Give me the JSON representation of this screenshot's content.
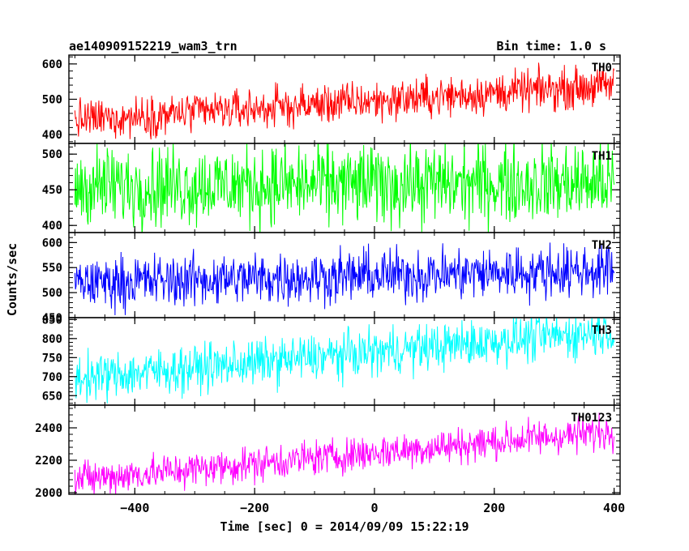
{
  "header": {
    "title": "ae140909152219_wam3_trn",
    "bin_time": "Bin time: 1.0 s"
  },
  "axes": {
    "ylabel": "Counts/sec",
    "xlabel": "Time [sec] 0 = 2014/09/09 15:22:19"
  },
  "chart_data": {
    "type": "line",
    "x_axis": {
      "range": [
        -510,
        410
      ],
      "ticks": [
        -400,
        -200,
        0,
        200,
        400
      ],
      "tick_labels": [
        "−400",
        "−200",
        "0",
        "200",
        "400"
      ]
    },
    "panels": [
      {
        "name": "TH0",
        "color": "#ff0000",
        "ylim": [
          375,
          625
        ],
        "yticks": [
          400,
          500,
          600
        ],
        "ytick_labels": [
          "400",
          "500",
          "600"
        ],
        "x_range": [
          -500,
          400
        ],
        "start": 440,
        "end": 540,
        "noise": 28
      },
      {
        "name": "TH1",
        "color": "#00ff00",
        "ylim": [
          390,
          515
        ],
        "yticks": [
          400,
          450,
          500
        ],
        "ytick_labels": [
          "400",
          "450",
          "500"
        ],
        "x_range": [
          -500,
          400
        ],
        "start": 455,
        "end": 460,
        "noise": 28
      },
      {
        "name": "TH2",
        "color": "#0000ff",
        "ylim": [
          450,
          620
        ],
        "yticks": [
          450,
          500,
          550,
          600
        ],
        "ytick_labels": [
          "450",
          "500",
          "550",
          "600"
        ],
        "x_range": [
          -500,
          400
        ],
        "start": 520,
        "end": 545,
        "noise": 26
      },
      {
        "name": "TH3",
        "color": "#00ffff",
        "ylim": [
          625,
          855
        ],
        "yticks": [
          650,
          700,
          750,
          800,
          850
        ],
        "ytick_labels": [
          "650",
          "700",
          "750",
          "800",
          "850"
        ],
        "x_range": [
          -500,
          400
        ],
        "start": 695,
        "end": 820,
        "noise": 30
      },
      {
        "name": "TH0123",
        "color": "#ff00ff",
        "ylim": [
          1990,
          2540
        ],
        "yticks": [
          2000,
          2200,
          2400
        ],
        "ytick_labels": [
          "2000",
          "2200",
          "2400"
        ],
        "x_range": [
          -500,
          400
        ],
        "start": 2080,
        "end": 2380,
        "noise": 55
      }
    ]
  }
}
